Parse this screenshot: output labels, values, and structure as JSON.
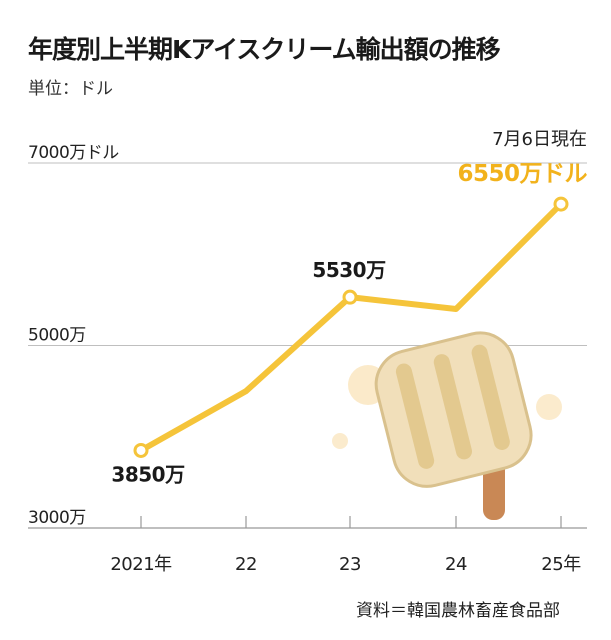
{
  "title": "年度別上半期Kアイスクリーム輸出額の推移",
  "unit": "単位：ドル",
  "source": "資料＝韓国農林畜産食品部",
  "colors": {
    "line": "#f5c43a",
    "point_fill": "#ffffff",
    "highlight_text": "#f2b21b",
    "grid": "#bfbfbf",
    "axis": "#999999"
  },
  "chart_data": {
    "type": "line",
    "title": "年度別上半期Kアイスクリーム輸出額の推移",
    "xlabel": "",
    "ylabel": "",
    "categories": [
      "2021年",
      "22",
      "23",
      "24",
      "25年"
    ],
    "y_ticks": [
      {
        "value": 3000,
        "label": "3000万"
      },
      {
        "value": 5000,
        "label": "5000万"
      },
      {
        "value": 7000,
        "label": "7000万ドル"
      }
    ],
    "ylim": [
      3000,
      7000
    ],
    "grid": true,
    "series": [
      {
        "values": [
          3850,
          4500,
          5530,
          5400,
          6550
        ]
      }
    ],
    "point_markers": [
      0,
      2,
      4
    ],
    "data_labels": [
      {
        "index": 0,
        "text": "3850万"
      },
      {
        "index": 2,
        "text": "5530万"
      }
    ],
    "annotation": {
      "index": 4,
      "date": "7月6日現在",
      "value_text": "6550万ドル"
    }
  }
}
